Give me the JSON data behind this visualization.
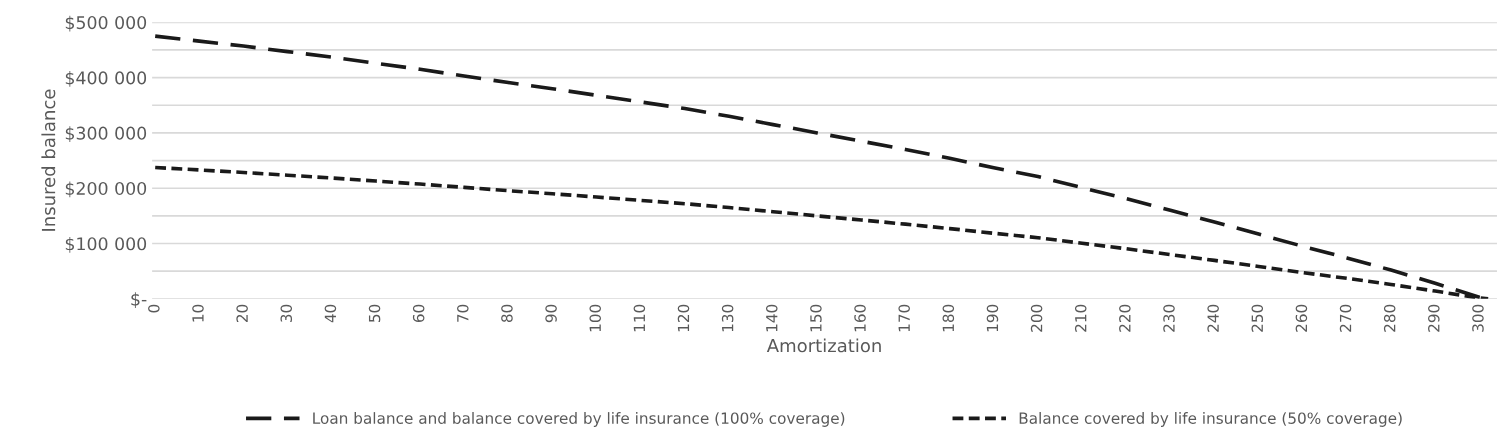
{
  "chart_data": {
    "type": "line",
    "xlabel": "Amortization",
    "ylabel": "Insured balance",
    "x": [
      0,
      10,
      20,
      30,
      40,
      50,
      60,
      70,
      80,
      90,
      100,
      110,
      120,
      130,
      140,
      150,
      160,
      170,
      180,
      190,
      200,
      210,
      220,
      230,
      240,
      250,
      260,
      270,
      280,
      290,
      300,
      302
    ],
    "series": [
      {
        "name": "Loan balance and balance covered by life insurance (100% coverage)",
        "color": "#1a1a1a",
        "line_style": "dashed",
        "values": [
          475000,
          466000,
          457000,
          447000,
          437000,
          426000,
          415000,
          403000,
          391000,
          380000,
          368000,
          356000,
          344000,
          330000,
          315000,
          300000,
          285000,
          270000,
          254000,
          237000,
          221000,
          201000,
          181000,
          160000,
          139000,
          117000,
          95000,
          74000,
          52000,
          28000,
          3000,
          0
        ]
      },
      {
        "name": "Balance covered by life insurance (50% coverage)",
        "color": "#1a1a1a",
        "line_style": "dotted",
        "values": [
          237500,
          233000,
          228500,
          223500,
          218500,
          213000,
          207500,
          201500,
          195500,
          190000,
          184000,
          178000,
          172000,
          165000,
          157500,
          150000,
          142500,
          135000,
          127000,
          118500,
          110500,
          100500,
          90500,
          80000,
          69500,
          58500,
          47500,
          37000,
          26000,
          14000,
          1500,
          0
        ]
      }
    ],
    "xlim": [
      -0.7,
      304
    ],
    "xticks": [
      0,
      10,
      20,
      30,
      40,
      50,
      60,
      70,
      80,
      90,
      100,
      110,
      120,
      130,
      140,
      150,
      160,
      170,
      180,
      190,
      200,
      210,
      220,
      230,
      240,
      250,
      260,
      270,
      280,
      290,
      300
    ],
    "ylim": [
      0,
      500000
    ],
    "yticks": [
      {
        "value": 0,
        "label": "$-"
      },
      {
        "value": 50000,
        "label": null
      },
      {
        "value": 100000,
        "label": "$100 000"
      },
      {
        "value": 150000,
        "label": null
      },
      {
        "value": 200000,
        "label": "$200 000"
      },
      {
        "value": 250000,
        "label": null
      },
      {
        "value": 300000,
        "label": "$300 000"
      },
      {
        "value": 350000,
        "label": null
      },
      {
        "value": 400000,
        "label": "$400 000"
      },
      {
        "value": 450000,
        "label": null
      },
      {
        "value": 500000,
        "label": "$500 000"
      }
    ],
    "grid": "y",
    "legend": "bottom",
    "marker": "none"
  }
}
